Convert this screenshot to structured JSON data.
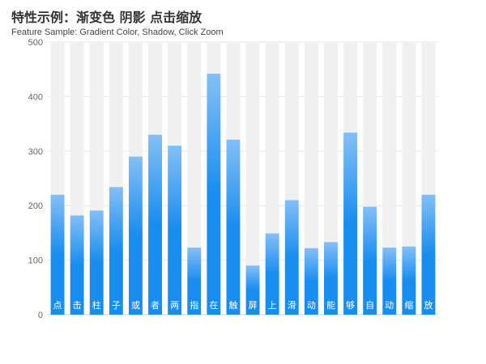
{
  "title": "特性示例：渐变色 阴影 点击缩放",
  "subtitle": "Feature Sample: Gradient Color, Shadow, Click Zoom",
  "colors": {
    "bar_top": "#83bff6",
    "bar_mid": "#188df0",
    "bar_bottom": "#188df0",
    "shadow_bar": "#f0f0f0",
    "grid": "#e6e6e6",
    "axis": "#cccccc",
    "label": "#ffffff"
  },
  "chart_data": {
    "type": "bar",
    "categories": [
      "点",
      "击",
      "柱",
      "子",
      "或",
      "者",
      "两",
      "指",
      "在",
      "触",
      "屏",
      "上",
      "滑",
      "动",
      "能",
      "够",
      "自",
      "动",
      "缩",
      "放"
    ],
    "values": [
      220,
      182,
      191,
      234,
      290,
      330,
      310,
      123,
      442,
      321,
      90,
      149,
      210,
      122,
      133,
      334,
      198,
      123,
      125,
      220
    ],
    "shadow_value": 500,
    "ylim": [
      0,
      500
    ],
    "yticks": [
      0,
      100,
      200,
      300,
      400,
      500
    ],
    "grid": true,
    "labels_inside_bars": true
  }
}
